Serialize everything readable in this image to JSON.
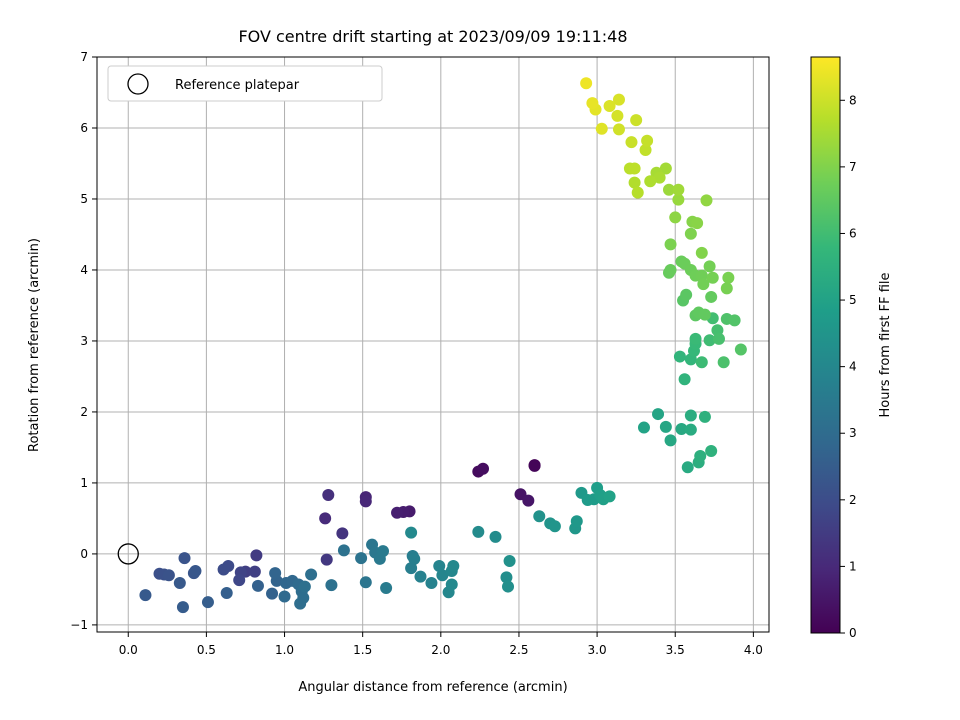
{
  "chart_data": {
    "type": "scatter",
    "title": "FOV centre drift starting at 2023/09/09 19:11:48",
    "xlabel": "Angular distance from reference (arcmin)",
    "ylabel": "Rotation from reference (arcmin)",
    "xlim": [
      -0.2,
      4.1
    ],
    "ylim": [
      -1.1,
      7.0
    ],
    "xticks": [
      "0.0",
      "0.5",
      "1.0",
      "1.5",
      "2.0",
      "2.5",
      "3.0",
      "3.5",
      "4.0"
    ],
    "yticks": [
      "−1",
      "0",
      "1",
      "2",
      "3",
      "4",
      "5",
      "6",
      "7"
    ],
    "grid": true,
    "legend": {
      "location": "upper-left",
      "entries": [
        "Reference platepar"
      ]
    },
    "reference_point": {
      "x": 0.0,
      "y": 0.0
    },
    "colorbar": {
      "label": "Hours from first FF file",
      "range": [
        0,
        8.65
      ],
      "ticks": [
        "0",
        "1",
        "2",
        "3",
        "4",
        "5",
        "6",
        "7",
        "8"
      ],
      "colormap": "viridis"
    },
    "points": [
      {
        "x": 2.6,
        "y": 1.25,
        "h": 0.05
      },
      {
        "x": 2.6,
        "y": 1.24,
        "h": 0.1
      },
      {
        "x": 2.24,
        "y": 1.16,
        "h": 0.25
      },
      {
        "x": 2.27,
        "y": 1.2,
        "h": 0.3
      },
      {
        "x": 2.51,
        "y": 0.84,
        "h": 0.45
      },
      {
        "x": 2.56,
        "y": 0.75,
        "h": 0.5
      },
      {
        "x": 1.8,
        "y": 0.6,
        "h": 0.65
      },
      {
        "x": 1.76,
        "y": 0.59,
        "h": 0.7
      },
      {
        "x": 1.72,
        "y": 0.58,
        "h": 0.75
      },
      {
        "x": 1.52,
        "y": 0.8,
        "h": 0.9
      },
      {
        "x": 1.52,
        "y": 0.74,
        "h": 0.95
      },
      {
        "x": 1.26,
        "y": 0.5,
        "h": 1.05
      },
      {
        "x": 1.28,
        "y": 0.83,
        "h": 1.2
      },
      {
        "x": 1.37,
        "y": 0.29,
        "h": 1.3
      },
      {
        "x": 1.27,
        "y": -0.08,
        "h": 1.4
      },
      {
        "x": 0.82,
        "y": -0.02,
        "h": 1.5
      },
      {
        "x": 0.75,
        "y": -0.25,
        "h": 1.6
      },
      {
        "x": 0.81,
        "y": -0.25,
        "h": 1.65
      },
      {
        "x": 0.72,
        "y": -0.26,
        "h": 1.75
      },
      {
        "x": 0.71,
        "y": -0.37,
        "h": 1.85
      },
      {
        "x": 0.64,
        "y": -0.17,
        "h": 1.95
      },
      {
        "x": 0.61,
        "y": -0.22,
        "h": 2.0
      },
      {
        "x": 0.2,
        "y": -0.28,
        "h": 2.1
      },
      {
        "x": 0.23,
        "y": -0.29,
        "h": 2.15
      },
      {
        "x": 0.26,
        "y": -0.3,
        "h": 2.2
      },
      {
        "x": 0.36,
        "y": -0.06,
        "h": 2.25
      },
      {
        "x": 0.42,
        "y": -0.27,
        "h": 2.3
      },
      {
        "x": 0.43,
        "y": -0.24,
        "h": 2.35
      },
      {
        "x": 0.33,
        "y": -0.41,
        "h": 2.4
      },
      {
        "x": 0.11,
        "y": -0.58,
        "h": 2.45
      },
      {
        "x": 0.35,
        "y": -0.75,
        "h": 2.5
      },
      {
        "x": 0.51,
        "y": -0.68,
        "h": 2.55
      },
      {
        "x": 0.63,
        "y": -0.55,
        "h": 2.6
      },
      {
        "x": 0.83,
        "y": -0.45,
        "h": 2.65
      },
      {
        "x": 0.92,
        "y": -0.56,
        "h": 2.7
      },
      {
        "x": 0.95,
        "y": -0.38,
        "h": 2.75
      },
      {
        "x": 0.94,
        "y": -0.27,
        "h": 2.8
      },
      {
        "x": 1.01,
        "y": -0.41,
        "h": 2.85
      },
      {
        "x": 1.05,
        "y": -0.38,
        "h": 2.9
      },
      {
        "x": 1.0,
        "y": -0.6,
        "h": 2.95
      },
      {
        "x": 1.09,
        "y": -0.43,
        "h": 3.0
      },
      {
        "x": 1.11,
        "y": -0.53,
        "h": 3.05
      },
      {
        "x": 1.1,
        "y": -0.7,
        "h": 3.1
      },
      {
        "x": 1.12,
        "y": -0.62,
        "h": 3.12
      },
      {
        "x": 1.17,
        "y": -0.29,
        "h": 3.15
      },
      {
        "x": 1.13,
        "y": -0.46,
        "h": 3.18
      },
      {
        "x": 1.3,
        "y": -0.44,
        "h": 3.2
      },
      {
        "x": 1.38,
        "y": 0.05,
        "h": 3.25
      },
      {
        "x": 1.49,
        "y": -0.06,
        "h": 3.3
      },
      {
        "x": 1.52,
        "y": -0.4,
        "h": 3.35
      },
      {
        "x": 1.56,
        "y": 0.13,
        "h": 3.4
      },
      {
        "x": 1.58,
        "y": 0.02,
        "h": 3.45
      },
      {
        "x": 1.61,
        "y": -0.07,
        "h": 3.5
      },
      {
        "x": 1.63,
        "y": 0.04,
        "h": 3.55
      },
      {
        "x": 1.65,
        "y": -0.48,
        "h": 3.6
      },
      {
        "x": 1.82,
        "y": -0.03,
        "h": 3.65
      },
      {
        "x": 1.81,
        "y": -0.2,
        "h": 3.7
      },
      {
        "x": 1.83,
        "y": -0.07,
        "h": 3.75
      },
      {
        "x": 1.87,
        "y": -0.32,
        "h": 3.8
      },
      {
        "x": 1.94,
        "y": -0.41,
        "h": 3.85
      },
      {
        "x": 1.99,
        "y": -0.17,
        "h": 3.9
      },
      {
        "x": 2.01,
        "y": -0.3,
        "h": 3.95
      },
      {
        "x": 2.05,
        "y": -0.54,
        "h": 4.0
      },
      {
        "x": 2.07,
        "y": -0.24,
        "h": 4.02
      },
      {
        "x": 2.08,
        "y": -0.17,
        "h": 4.05
      },
      {
        "x": 2.07,
        "y": -0.43,
        "h": 4.08
      },
      {
        "x": 1.81,
        "y": 0.3,
        "h": 4.1
      },
      {
        "x": 2.24,
        "y": 0.31,
        "h": 4.15
      },
      {
        "x": 2.35,
        "y": 0.24,
        "h": 4.2
      },
      {
        "x": 2.42,
        "y": -0.33,
        "h": 4.25
      },
      {
        "x": 2.43,
        "y": -0.46,
        "h": 4.3
      },
      {
        "x": 2.44,
        "y": -0.1,
        "h": 4.35
      },
      {
        "x": 2.63,
        "y": 0.53,
        "h": 4.4
      },
      {
        "x": 2.7,
        "y": 0.43,
        "h": 4.45
      },
      {
        "x": 2.73,
        "y": 0.39,
        "h": 4.5
      },
      {
        "x": 2.86,
        "y": 0.36,
        "h": 4.55
      },
      {
        "x": 2.87,
        "y": 0.46,
        "h": 4.6
      },
      {
        "x": 2.9,
        "y": 0.86,
        "h": 4.65
      },
      {
        "x": 2.94,
        "y": 0.76,
        "h": 4.7
      },
      {
        "x": 2.98,
        "y": 0.77,
        "h": 4.75
      },
      {
        "x": 3.0,
        "y": 0.93,
        "h": 4.8
      },
      {
        "x": 3.02,
        "y": 0.83,
        "h": 4.85
      },
      {
        "x": 3.04,
        "y": 0.77,
        "h": 4.9
      },
      {
        "x": 3.08,
        "y": 0.81,
        "h": 4.95
      },
      {
        "x": 3.3,
        "y": 1.78,
        "h": 5.0
      },
      {
        "x": 3.39,
        "y": 1.97,
        "h": 5.05
      },
      {
        "x": 3.44,
        "y": 1.79,
        "h": 5.1
      },
      {
        "x": 3.47,
        "y": 1.6,
        "h": 5.15
      },
      {
        "x": 3.54,
        "y": 1.76,
        "h": 5.2
      },
      {
        "x": 3.58,
        "y": 1.22,
        "h": 5.25
      },
      {
        "x": 3.6,
        "y": 1.75,
        "h": 5.3
      },
      {
        "x": 3.6,
        "y": 1.95,
        "h": 5.35
      },
      {
        "x": 3.65,
        "y": 1.29,
        "h": 5.4
      },
      {
        "x": 3.66,
        "y": 1.38,
        "h": 5.45
      },
      {
        "x": 3.69,
        "y": 1.93,
        "h": 5.5
      },
      {
        "x": 3.73,
        "y": 1.45,
        "h": 5.55
      },
      {
        "x": 3.56,
        "y": 2.46,
        "h": 5.6
      },
      {
        "x": 3.53,
        "y": 2.78,
        "h": 5.65
      },
      {
        "x": 3.6,
        "y": 2.74,
        "h": 5.7
      },
      {
        "x": 3.62,
        "y": 2.86,
        "h": 5.75
      },
      {
        "x": 3.63,
        "y": 2.96,
        "h": 5.8
      },
      {
        "x": 3.63,
        "y": 3.03,
        "h": 5.85
      },
      {
        "x": 3.67,
        "y": 2.7,
        "h": 5.9
      },
      {
        "x": 3.72,
        "y": 3.01,
        "h": 5.95
      },
      {
        "x": 3.74,
        "y": 3.32,
        "h": 6.0
      },
      {
        "x": 3.77,
        "y": 3.15,
        "h": 6.05
      },
      {
        "x": 3.78,
        "y": 3.03,
        "h": 6.1
      },
      {
        "x": 3.81,
        "y": 2.7,
        "h": 6.15
      },
      {
        "x": 3.83,
        "y": 3.31,
        "h": 6.2
      },
      {
        "x": 3.88,
        "y": 3.29,
        "h": 6.25
      },
      {
        "x": 3.92,
        "y": 2.88,
        "h": 6.3
      },
      {
        "x": 3.55,
        "y": 3.57,
        "h": 6.35
      },
      {
        "x": 3.57,
        "y": 3.65,
        "h": 6.4
      },
      {
        "x": 3.63,
        "y": 3.36,
        "h": 6.45
      },
      {
        "x": 3.65,
        "y": 3.4,
        "h": 6.5
      },
      {
        "x": 3.69,
        "y": 3.37,
        "h": 6.52
      },
      {
        "x": 3.73,
        "y": 3.62,
        "h": 6.55
      },
      {
        "x": 3.46,
        "y": 3.96,
        "h": 6.6
      },
      {
        "x": 3.47,
        "y": 4.0,
        "h": 6.62
      },
      {
        "x": 3.54,
        "y": 4.12,
        "h": 6.65
      },
      {
        "x": 3.56,
        "y": 4.09,
        "h": 6.68
      },
      {
        "x": 3.6,
        "y": 4.0,
        "h": 6.7
      },
      {
        "x": 3.63,
        "y": 3.92,
        "h": 6.72
      },
      {
        "x": 3.67,
        "y": 3.92,
        "h": 6.75
      },
      {
        "x": 3.68,
        "y": 3.8,
        "h": 6.78
      },
      {
        "x": 3.72,
        "y": 4.05,
        "h": 6.8
      },
      {
        "x": 3.74,
        "y": 3.89,
        "h": 6.82
      },
      {
        "x": 3.83,
        "y": 3.74,
        "h": 6.85
      },
      {
        "x": 3.84,
        "y": 3.89,
        "h": 6.88
      },
      {
        "x": 3.47,
        "y": 4.36,
        "h": 6.9
      },
      {
        "x": 3.6,
        "y": 4.51,
        "h": 6.95
      },
      {
        "x": 3.67,
        "y": 4.24,
        "h": 7.0
      },
      {
        "x": 3.61,
        "y": 4.68,
        "h": 7.05
      },
      {
        "x": 3.64,
        "y": 4.66,
        "h": 7.1
      },
      {
        "x": 3.5,
        "y": 4.74,
        "h": 7.15
      },
      {
        "x": 3.7,
        "y": 4.98,
        "h": 7.2
      },
      {
        "x": 3.52,
        "y": 4.99,
        "h": 7.3
      },
      {
        "x": 3.46,
        "y": 5.13,
        "h": 7.35
      },
      {
        "x": 3.52,
        "y": 5.13,
        "h": 7.4
      },
      {
        "x": 3.44,
        "y": 5.43,
        "h": 7.45
      },
      {
        "x": 3.38,
        "y": 5.37,
        "h": 7.5
      },
      {
        "x": 3.4,
        "y": 5.3,
        "h": 7.55
      },
      {
        "x": 3.34,
        "y": 5.25,
        "h": 7.6
      },
      {
        "x": 3.24,
        "y": 5.23,
        "h": 7.65
      },
      {
        "x": 3.26,
        "y": 5.09,
        "h": 7.7
      },
      {
        "x": 3.21,
        "y": 5.43,
        "h": 7.75
      },
      {
        "x": 3.24,
        "y": 5.43,
        "h": 7.8
      },
      {
        "x": 3.31,
        "y": 5.69,
        "h": 7.85
      },
      {
        "x": 3.32,
        "y": 5.82,
        "h": 7.9
      },
      {
        "x": 3.22,
        "y": 5.8,
        "h": 7.95
      },
      {
        "x": 3.25,
        "y": 6.11,
        "h": 8.0
      },
      {
        "x": 3.14,
        "y": 5.98,
        "h": 8.05
      },
      {
        "x": 3.13,
        "y": 6.17,
        "h": 8.1
      },
      {
        "x": 3.14,
        "y": 6.4,
        "h": 8.15
      },
      {
        "x": 3.08,
        "y": 6.31,
        "h": 8.2
      },
      {
        "x": 3.03,
        "y": 5.99,
        "h": 8.25
      },
      {
        "x": 2.99,
        "y": 6.26,
        "h": 8.3
      },
      {
        "x": 2.97,
        "y": 6.35,
        "h": 8.35
      },
      {
        "x": 2.93,
        "y": 6.63,
        "h": 8.45
      }
    ]
  }
}
